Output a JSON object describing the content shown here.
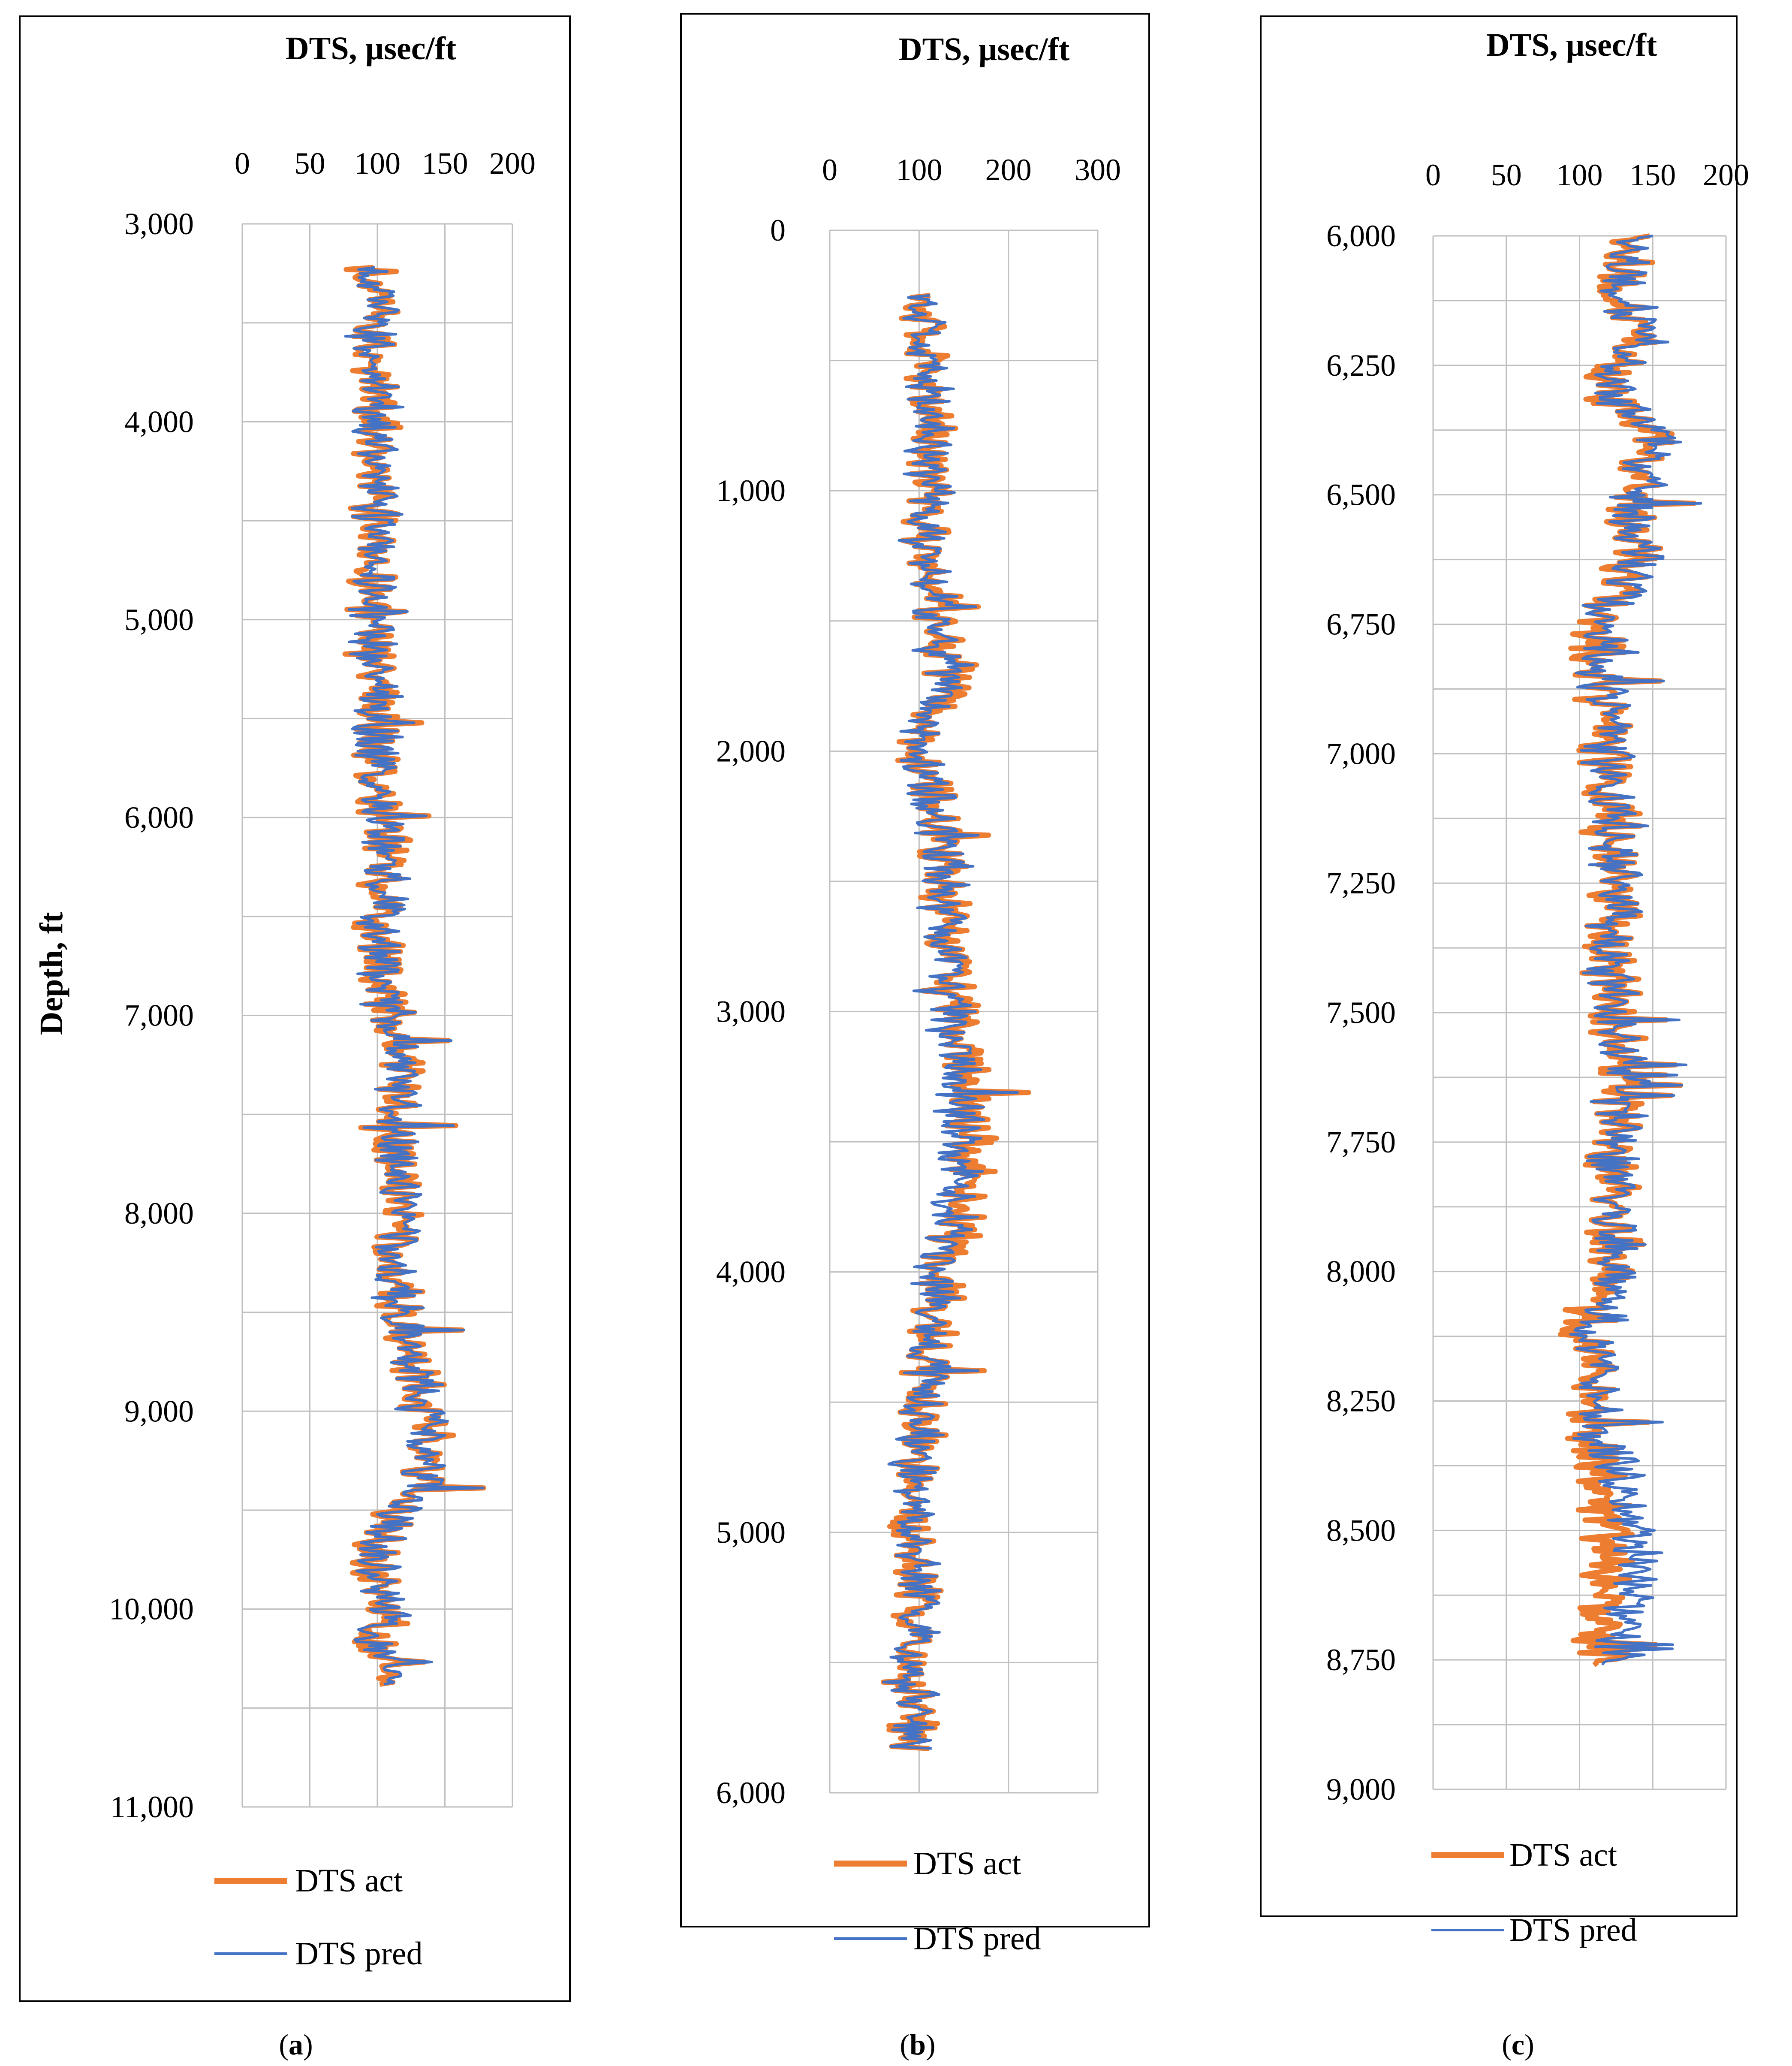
{
  "colors": {
    "act": "#ED7D31",
    "pred": "#4472C4",
    "grid": "#BFBFBF",
    "frame": "#000000"
  },
  "chart_data": [
    {
      "id": "a",
      "type": "line",
      "orientation": "vertical-depth",
      "title": "DTS, µsec/ft",
      "ylabel": "Depth, ft",
      "caption": {
        "open": "(",
        "letter": "a",
        "close": ")"
      },
      "xlim": [
        0,
        200
      ],
      "xticks": [
        0,
        50,
        100,
        150,
        200
      ],
      "xtick_labels": [
        "0",
        "50",
        "100",
        "150",
        "200"
      ],
      "ylim": [
        3000,
        11000
      ],
      "yticks": [
        3000,
        4000,
        5000,
        6000,
        7000,
        8000,
        9000,
        10000,
        11000
      ],
      "ytick_labels": [
        "3,000",
        "4,000",
        "5,000",
        "6,000",
        "7,000",
        "8,000",
        "9,000",
        "10,000",
        "11,000"
      ],
      "legend": [
        "DTS act",
        "DTS pred"
      ],
      "series": [
        {
          "name": "DTS act",
          "depth": [
            3220,
            3400,
            3600,
            3800,
            4000,
            4200,
            4400,
            4600,
            4800,
            5000,
            5200,
            5400,
            5600,
            5800,
            6000,
            6200,
            6400,
            6600,
            6800,
            7000,
            7200,
            7400,
            7600,
            7800,
            8000,
            8200,
            8400,
            8600,
            8800,
            9000,
            9200,
            9400,
            9600,
            9800,
            10000,
            10200,
            10380
          ],
          "values": [
            95,
            100,
            92,
            98,
            102,
            96,
            98,
            97,
            95,
            93,
            96,
            98,
            100,
            98,
            103,
            105,
            103,
            100,
            102,
            108,
            120,
            115,
            110,
            118,
            120,
            113,
            115,
            120,
            127,
            133,
            140,
            135,
            102,
            100,
            105,
            98,
            112
          ]
        },
        {
          "name": "DTS pred",
          "depth": [
            3220,
            3400,
            3600,
            3800,
            4000,
            4200,
            4400,
            4600,
            4800,
            5000,
            5200,
            5400,
            5600,
            5800,
            6000,
            6200,
            6400,
            6600,
            6800,
            7000,
            7200,
            7400,
            7600,
            7800,
            8000,
            8200,
            8400,
            8600,
            8800,
            9000,
            9200,
            9400,
            9600,
            9800,
            10000,
            10200,
            10380
          ],
          "values": [
            96,
            101,
            93,
            99,
            101,
            97,
            99,
            98,
            96,
            94,
            97,
            99,
            101,
            99,
            102,
            104,
            104,
            101,
            103,
            109,
            119,
            116,
            112,
            119,
            121,
            114,
            116,
            121,
            128,
            134,
            139,
            134,
            104,
            101,
            106,
            100,
            114
          ]
        }
      ]
    },
    {
      "id": "b",
      "type": "line",
      "orientation": "vertical-depth",
      "title": "DTS, µsec/ft",
      "caption": {
        "open": "(",
        "letter": "b",
        "close": ")"
      },
      "xlim": [
        0,
        300
      ],
      "xticks": [
        0,
        100,
        200,
        300
      ],
      "xtick_labels": [
        "0",
        "100",
        "200",
        "300"
      ],
      "ylim": [
        0,
        6000
      ],
      "yticks": [
        0,
        1000,
        2000,
        3000,
        4000,
        5000,
        6000
      ],
      "ytick_labels": [
        "0",
        "1,000",
        "2,000",
        "3,000",
        "4,000",
        "5,000",
        "6,000"
      ],
      "legend": [
        "DTS act",
        "DTS pred"
      ],
      "series": [
        {
          "name": "DTS act",
          "depth": [
            250,
            500,
            750,
            1000,
            1250,
            1500,
            1750,
            2000,
            2250,
            2500,
            2750,
            3000,
            3250,
            3500,
            3750,
            4000,
            4250,
            4500,
            4750,
            5000,
            5250,
            5500,
            5830
          ],
          "values": [
            105,
            108,
            118,
            110,
            108,
            115,
            135,
            95,
            125,
            130,
            135,
            140,
            150,
            160,
            150,
            125,
            115,
            105,
            95,
            90,
            100,
            95,
            92
          ]
        },
        {
          "name": "DTS pred",
          "depth": [
            250,
            500,
            750,
            1000,
            1250,
            1500,
            1750,
            2000,
            2250,
            2500,
            2750,
            3000,
            3250,
            3500,
            3750,
            4000,
            4250,
            4500,
            4750,
            5000,
            5250,
            5500,
            5830
          ],
          "values": [
            104,
            107,
            115,
            109,
            107,
            113,
            130,
            97,
            122,
            127,
            131,
            135,
            142,
            148,
            140,
            122,
            113,
            104,
            96,
            92,
            101,
            96,
            93
          ]
        }
      ]
    },
    {
      "id": "c",
      "type": "line",
      "orientation": "vertical-depth",
      "title": "DTS, µsec/ft",
      "caption": {
        "open": "(",
        "letter": "c",
        "close": ")"
      },
      "xlim": [
        0,
        200
      ],
      "xticks": [
        0,
        50,
        100,
        150,
        200
      ],
      "xtick_labels": [
        "0",
        "50",
        "100",
        "150",
        "200"
      ],
      "ylim": [
        6000,
        9000
      ],
      "yticks": [
        6000,
        6250,
        6500,
        6750,
        7000,
        7250,
        7500,
        7750,
        8000,
        8250,
        8500,
        8750,
        9000
      ],
      "ytick_labels": [
        "6,000",
        "6,250",
        "6,500",
        "6,750",
        "7,000",
        "7,250",
        "7,500",
        "7,750",
        "8,000",
        "8,250",
        "8,500",
        "8,750",
        "9,000"
      ],
      "legend": [
        "DTS act",
        "DTS pred"
      ],
      "series": [
        {
          "name": "DTS act",
          "depth": [
            6000,
            6100,
            6200,
            6300,
            6400,
            6500,
            6600,
            6700,
            6800,
            6900,
            7000,
            7100,
            7200,
            7300,
            7400,
            7500,
            7600,
            7700,
            7800,
            7900,
            8000,
            8100,
            8200,
            8300,
            8400,
            8500,
            8600,
            8700,
            8760
          ],
          "values": [
            140,
            125,
            140,
            115,
            150,
            135,
            140,
            125,
            110,
            115,
            118,
            120,
            122,
            125,
            120,
            125,
            130,
            125,
            122,
            125,
            120,
            105,
            110,
            108,
            115,
            120,
            118,
            112,
            120
          ]
        },
        {
          "name": "DTS pred",
          "depth": [
            6000,
            6100,
            6200,
            6300,
            6400,
            6500,
            6600,
            6700,
            6800,
            6900,
            7000,
            7100,
            7200,
            7300,
            7400,
            7500,
            7600,
            7700,
            7800,
            7900,
            8000,
            8100,
            8200,
            8300,
            8400,
            8500,
            8600,
            8700,
            8760
          ],
          "values": [
            142,
            128,
            142,
            118,
            155,
            138,
            142,
            127,
            115,
            117,
            120,
            121,
            123,
            126,
            121,
            126,
            131,
            126,
            123,
            126,
            124,
            112,
            114,
            112,
            130,
            135,
            140,
            130,
            125
          ]
        }
      ]
    }
  ]
}
